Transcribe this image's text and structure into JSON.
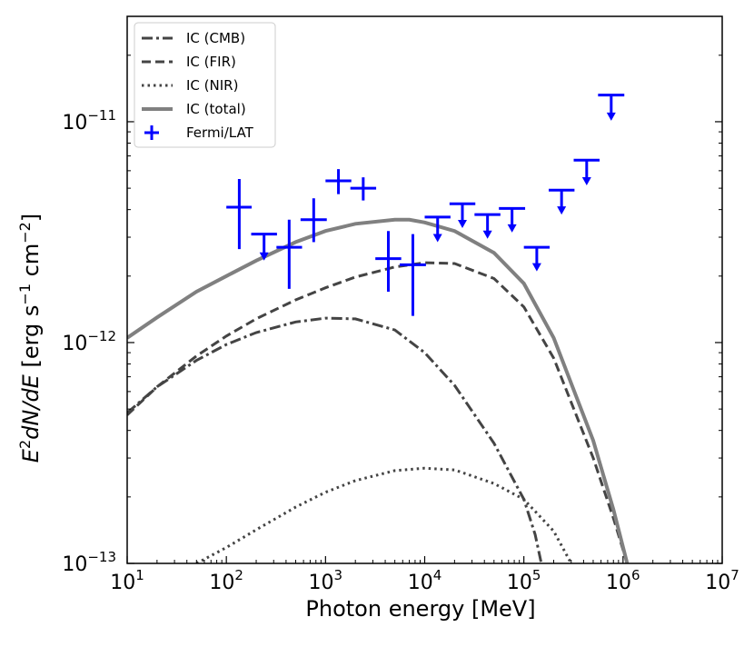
{
  "chart_data": {
    "type": "line",
    "xlabel": "Photon energy [MeV]",
    "ylabel": "E²dN/dE [erg s⁻¹ cm⁻²]",
    "ylabel_parts": {
      "e": "E",
      "e_sup": "2",
      "dn": "dN/dE",
      "unit_open": " [erg s",
      "unit_sup1": "−1",
      "unit_mid": " cm",
      "unit_sup2": "−2",
      "unit_close": "]"
    },
    "x_scale": "log",
    "y_scale": "log",
    "xlim": [
      10,
      10000000
    ],
    "ylim": [
      1e-13,
      3e-11
    ],
    "x_ticks": [
      {
        "value": 10,
        "base": "10",
        "exp": "1"
      },
      {
        "value": 100,
        "base": "10",
        "exp": "2"
      },
      {
        "value": 1000,
        "base": "10",
        "exp": "3"
      },
      {
        "value": 10000,
        "base": "10",
        "exp": "4"
      },
      {
        "value": 100000,
        "base": "10",
        "exp": "5"
      },
      {
        "value": 1000000,
        "base": "10",
        "exp": "6"
      },
      {
        "value": 10000000,
        "base": "10",
        "exp": "7"
      }
    ],
    "y_ticks": [
      {
        "value": 1e-13,
        "base": "10",
        "exp": "−13"
      },
      {
        "value": 1e-12,
        "base": "10",
        "exp": "−12"
      },
      {
        "value": 1e-11,
        "base": "10",
        "exp": "−11"
      }
    ],
    "grid": false,
    "legend_position": "top-left",
    "series": [
      {
        "name": "IC (CMB)",
        "style": "dashdot",
        "color": "#444444",
        "points": [
          [
            10,
            4.8e-13
          ],
          [
            20,
            6.3e-13
          ],
          [
            50,
            8.3e-13
          ],
          [
            100,
            9.8e-13
          ],
          [
            200,
            1.11e-12
          ],
          [
            500,
            1.24e-12
          ],
          [
            1000,
            1.29e-12
          ],
          [
            2000,
            1.28e-12
          ],
          [
            5000,
            1.14e-12
          ],
          [
            10000,
            9e-13
          ],
          [
            20000,
            6.4e-13
          ],
          [
            50000,
            3.5e-13
          ],
          [
            100000,
            1.95e-13
          ],
          [
            130000,
            1.35e-13
          ],
          [
            150000,
            1e-13
          ]
        ]
      },
      {
        "name": "IC (FIR)",
        "style": "dashed",
        "color": "#444444",
        "points": [
          [
            10,
            4.7e-13
          ],
          [
            20,
            6.3e-13
          ],
          [
            50,
            8.7e-13
          ],
          [
            100,
            1.07e-12
          ],
          [
            200,
            1.28e-12
          ],
          [
            500,
            1.56e-12
          ],
          [
            1000,
            1.77e-12
          ],
          [
            2000,
            1.98e-12
          ],
          [
            5000,
            2.2e-12
          ],
          [
            10000,
            2.3e-12
          ],
          [
            20000,
            2.28e-12
          ],
          [
            50000,
            1.95e-12
          ],
          [
            100000,
            1.45e-12
          ],
          [
            200000,
            8.5e-13
          ],
          [
            500000,
            3e-13
          ],
          [
            800000,
            1.6e-13
          ],
          [
            1100000,
            1e-13
          ]
        ]
      },
      {
        "name": "IC (NIR)",
        "style": "dotted",
        "color": "#444444",
        "points": [
          [
            50,
            1e-13
          ],
          [
            100,
            1.18e-13
          ],
          [
            200,
            1.42e-13
          ],
          [
            500,
            1.8e-13
          ],
          [
            1000,
            2.1e-13
          ],
          [
            2000,
            2.37e-13
          ],
          [
            5000,
            2.63e-13
          ],
          [
            10000,
            2.7e-13
          ],
          [
            20000,
            2.65e-13
          ],
          [
            50000,
            2.3e-13
          ],
          [
            100000,
            1.95e-13
          ],
          [
            200000,
            1.4e-13
          ],
          [
            300000,
            1e-13
          ]
        ]
      },
      {
        "name": "IC (total)",
        "style": "solid",
        "color": "#808080",
        "points": [
          [
            10,
            1.05e-12
          ],
          [
            20,
            1.3e-12
          ],
          [
            50,
            1.7e-12
          ],
          [
            100,
            2e-12
          ],
          [
            200,
            2.35e-12
          ],
          [
            500,
            2.85e-12
          ],
          [
            1000,
            3.2e-12
          ],
          [
            2000,
            3.45e-12
          ],
          [
            5000,
            3.6e-12
          ],
          [
            7000,
            3.6e-12
          ],
          [
            10000,
            3.5e-12
          ],
          [
            20000,
            3.2e-12
          ],
          [
            50000,
            2.55e-12
          ],
          [
            100000,
            1.85e-12
          ],
          [
            200000,
            1.05e-12
          ],
          [
            500000,
            3.6e-13
          ],
          [
            800000,
            1.75e-13
          ],
          [
            1100000,
            1e-13
          ]
        ]
      }
    ],
    "fermi_lat": {
      "name": "Fermi/LAT",
      "color": "#0000ff",
      "points": [
        {
          "x": 135,
          "xlo": 100,
          "xhi": 180,
          "y": 4.1e-12,
          "ylo": 2.65e-12,
          "yhi": 5.5e-12
        },
        {
          "x": 430,
          "xlo": 320,
          "xhi": 580,
          "y": 2.7e-12,
          "ylo": 1.75e-12,
          "yhi": 3.6e-12
        },
        {
          "x": 760,
          "xlo": 560,
          "xhi": 1030,
          "y": 3.6e-12,
          "ylo": 2.85e-12,
          "yhi": 4.5e-12
        },
        {
          "x": 1350,
          "xlo": 1000,
          "xhi": 1820,
          "y": 5.4e-12,
          "ylo": 4.7e-12,
          "yhi": 6.1e-12
        },
        {
          "x": 2400,
          "xlo": 1780,
          "xhi": 3240,
          "y": 5e-12,
          "ylo": 4.4e-12,
          "yhi": 5.6e-12
        },
        {
          "x": 4300,
          "xlo": 3180,
          "xhi": 5800,
          "y": 2.4e-12,
          "ylo": 1.7e-12,
          "yhi": 3.2e-12
        },
        {
          "x": 7600,
          "xlo": 5600,
          "xhi": 10300,
          "y": 2.25e-12,
          "ylo": 1.32e-12,
          "yhi": 3.1e-12
        }
      ],
      "upper_limits": [
        {
          "x": 240,
          "xlo": 178,
          "xhi": 324,
          "y": 3.1e-12,
          "y_arrow": 2.35e-12
        },
        {
          "x": 13500,
          "xlo": 10000,
          "xhi": 18200,
          "y": 3.7e-12,
          "y_arrow": 2.85e-12
        },
        {
          "x": 24000,
          "xlo": 17800,
          "xhi": 32400,
          "y": 4.25e-12,
          "y_arrow": 3.3e-12
        },
        {
          "x": 43000,
          "xlo": 31800,
          "xhi": 58000,
          "y": 3.8e-12,
          "y_arrow": 2.95e-12
        },
        {
          "x": 76000,
          "xlo": 56000,
          "xhi": 103000,
          "y": 4.05e-12,
          "y_arrow": 3.15e-12
        },
        {
          "x": 135000,
          "xlo": 100000,
          "xhi": 182000,
          "y": 2.7e-12,
          "y_arrow": 2.1e-12
        },
        {
          "x": 240000,
          "xlo": 178000,
          "xhi": 324000,
          "y": 4.9e-12,
          "y_arrow": 3.8e-12
        },
        {
          "x": 430000,
          "xlo": 318000,
          "xhi": 580000,
          "y": 6.7e-12,
          "y_arrow": 5.15e-12
        },
        {
          "x": 760000,
          "xlo": 560000,
          "xhi": 1030000,
          "y": 1.32e-11,
          "y_arrow": 1.01e-11
        }
      ]
    }
  }
}
